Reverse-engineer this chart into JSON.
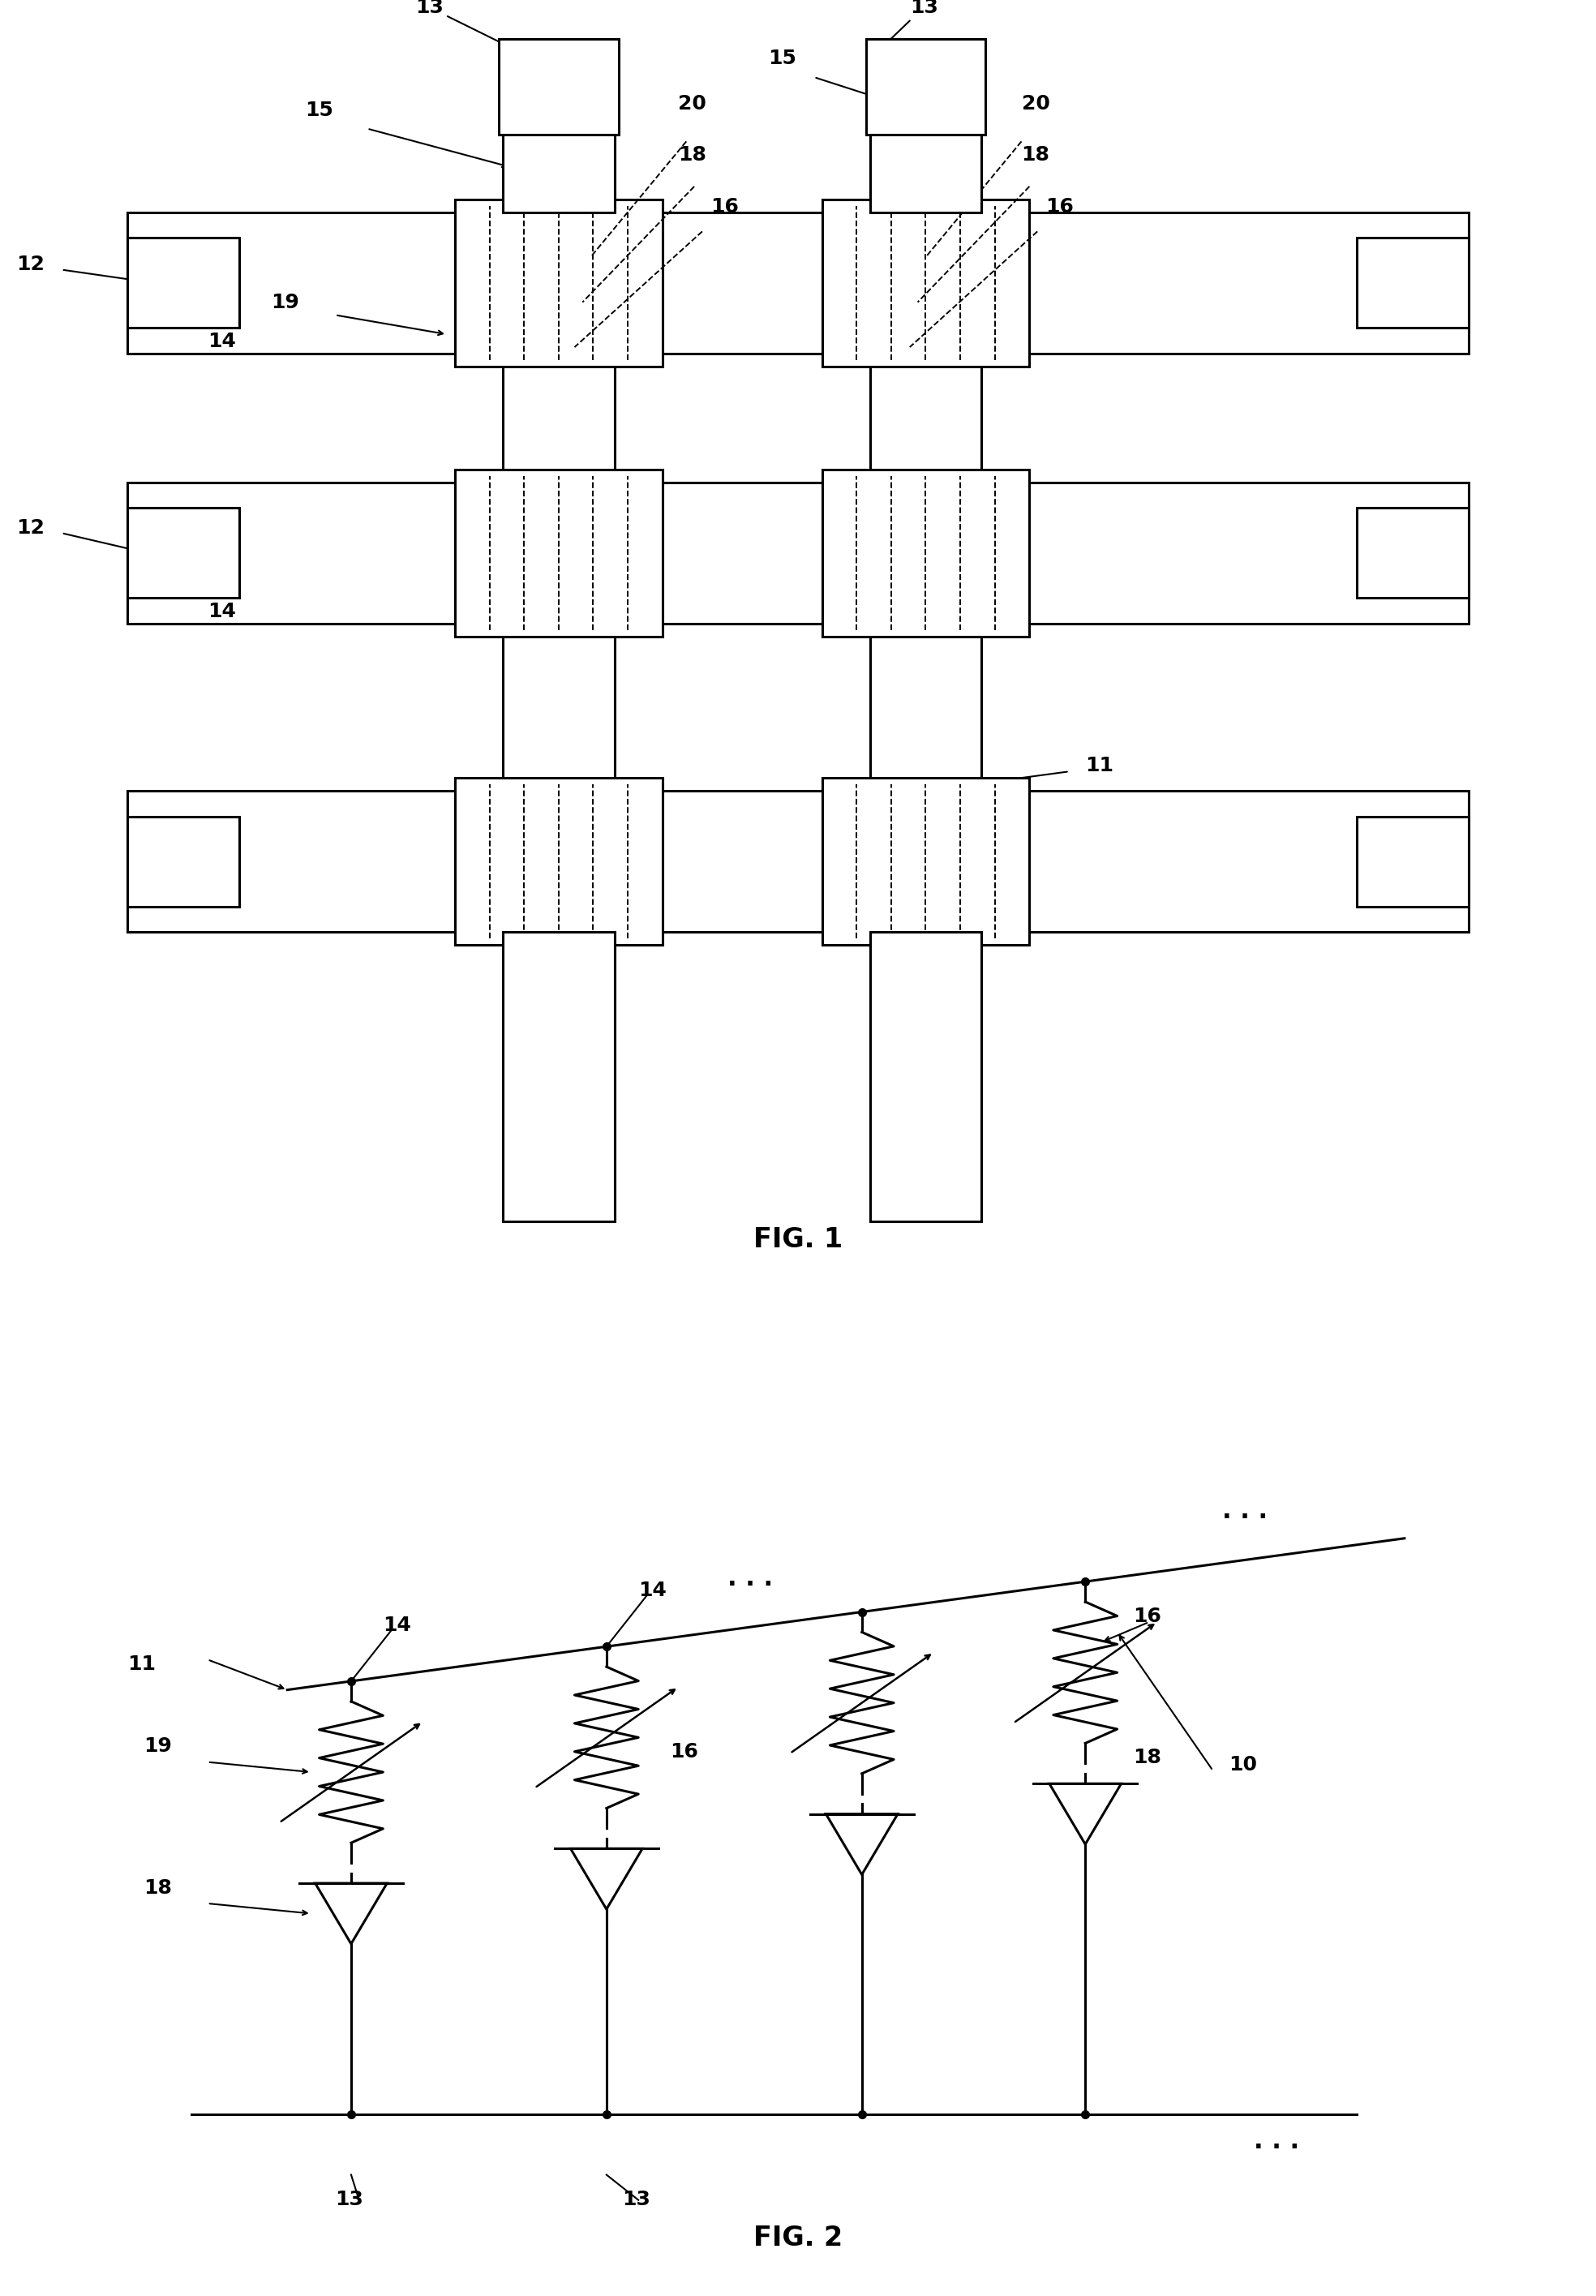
{
  "background_color": "#ffffff",
  "fig1_title": "FIG. 1",
  "fig2_title": "FIG. 2",
  "line_color": "#000000",
  "lw_main": 2.2,
  "lw_thin": 1.4,
  "label_fontsize": 18,
  "title_fontsize": 24
}
